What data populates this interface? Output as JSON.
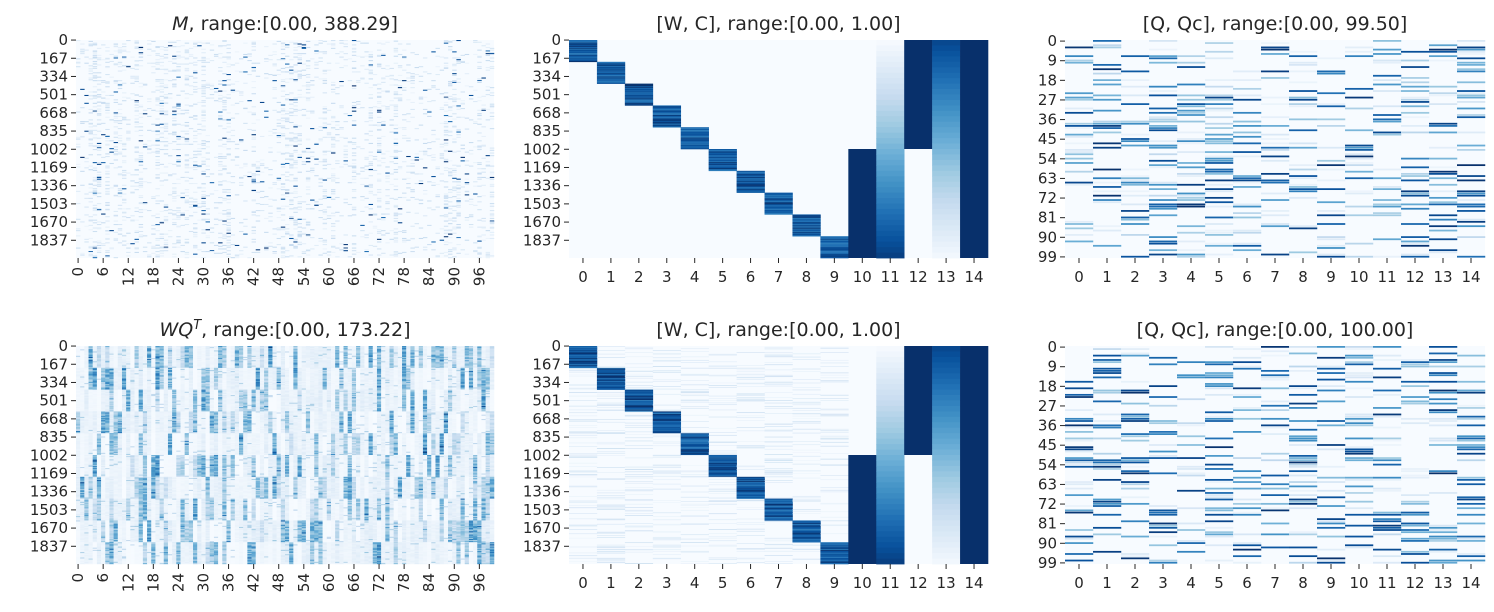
{
  "figure": {
    "colormap": "Blues",
    "color_low": "#f7fbff",
    "color_high": "#08306b"
  },
  "chart_data": [
    {
      "id": "M",
      "type": "heatmap",
      "title": {
        "prefix": "M",
        "prefix_italic": true,
        "suffix": ", range:[0.00, 388.29]"
      },
      "vmin": 0.0,
      "vmax": 388.29,
      "rows": 2000,
      "cols": 100,
      "y_ticks": [
        0,
        167,
        334,
        501,
        668,
        835,
        1002,
        1169,
        1336,
        1503,
        1670,
        1837
      ],
      "x_ticks": [
        0,
        6,
        12,
        18,
        24,
        30,
        36,
        42,
        48,
        54,
        60,
        66,
        72,
        78,
        84,
        90,
        96
      ],
      "x_ticks_rotated": true,
      "pattern": "sparse random"
    },
    {
      "id": "WC1",
      "type": "heatmap",
      "title": {
        "prefix": "",
        "prefix_italic": false,
        "suffix": "[W, C], range:[0.00, 1.00]"
      },
      "vmin": 0.0,
      "vmax": 1.0,
      "rows": 2000,
      "cols": 15,
      "y_ticks": [
        0,
        167,
        334,
        501,
        668,
        835,
        1002,
        1169,
        1336,
        1503,
        1670,
        1837
      ],
      "x_ticks": [
        0,
        1,
        2,
        3,
        4,
        5,
        6,
        7,
        8,
        9,
        10,
        11,
        12,
        13,
        14
      ],
      "x_ticks_rotated": false,
      "pattern": "block diagonal; cols 10-14 constraint columns",
      "noise": 0.0
    },
    {
      "id": "QQc1",
      "type": "heatmap",
      "title": {
        "prefix": "",
        "prefix_italic": false,
        "suffix": "[Q, Qc], range:[0.00, 99.50]"
      },
      "vmin": 0.0,
      "vmax": 99.5,
      "rows": 100,
      "cols": 15,
      "y_ticks": [
        0,
        9,
        18,
        27,
        36,
        45,
        54,
        63,
        72,
        81,
        90,
        99
      ],
      "x_ticks": [
        0,
        1,
        2,
        3,
        4,
        5,
        6,
        7,
        8,
        9,
        10,
        11,
        12,
        13,
        14
      ],
      "x_ticks_rotated": false,
      "pattern": "sparse random"
    },
    {
      "id": "WQT",
      "type": "heatmap",
      "title": {
        "prefix": "WQ",
        "prefix_italic": true,
        "superscript": "T",
        "suffix": ", range:[0.00, 173.22]"
      },
      "vmin": 0.0,
      "vmax": 173.22,
      "rows": 2000,
      "cols": 100,
      "y_ticks": [
        0,
        167,
        334,
        501,
        668,
        835,
        1002,
        1169,
        1336,
        1503,
        1670,
        1837
      ],
      "x_ticks": [
        0,
        6,
        12,
        18,
        24,
        30,
        36,
        42,
        48,
        54,
        60,
        66,
        72,
        78,
        84,
        90,
        96
      ],
      "x_ticks_rotated": true,
      "pattern": "block structured"
    },
    {
      "id": "WC2",
      "type": "heatmap",
      "title": {
        "prefix": "",
        "prefix_italic": false,
        "suffix": "[W, C], range:[0.00, 1.00]"
      },
      "vmin": 0.0,
      "vmax": 1.0,
      "rows": 2000,
      "cols": 15,
      "y_ticks": [
        0,
        167,
        334,
        501,
        668,
        835,
        1002,
        1169,
        1336,
        1503,
        1670,
        1837
      ],
      "x_ticks": [
        0,
        1,
        2,
        3,
        4,
        5,
        6,
        7,
        8,
        9,
        10,
        11,
        12,
        13,
        14
      ],
      "x_ticks_rotated": false,
      "pattern": "block diagonal; cols 10-14 constraint columns",
      "noise": 0.25
    },
    {
      "id": "QQc2",
      "type": "heatmap",
      "title": {
        "prefix": "",
        "prefix_italic": false,
        "suffix": "[Q, Qc], range:[0.00, 100.00]"
      },
      "vmin": 0.0,
      "vmax": 100.0,
      "rows": 100,
      "cols": 15,
      "y_ticks": [
        0,
        9,
        18,
        27,
        36,
        45,
        54,
        63,
        72,
        81,
        90,
        99
      ],
      "x_ticks": [
        0,
        1,
        2,
        3,
        4,
        5,
        6,
        7,
        8,
        9,
        10,
        11,
        12,
        13,
        14
      ],
      "x_ticks_rotated": false,
      "pattern": "sparse random"
    }
  ]
}
